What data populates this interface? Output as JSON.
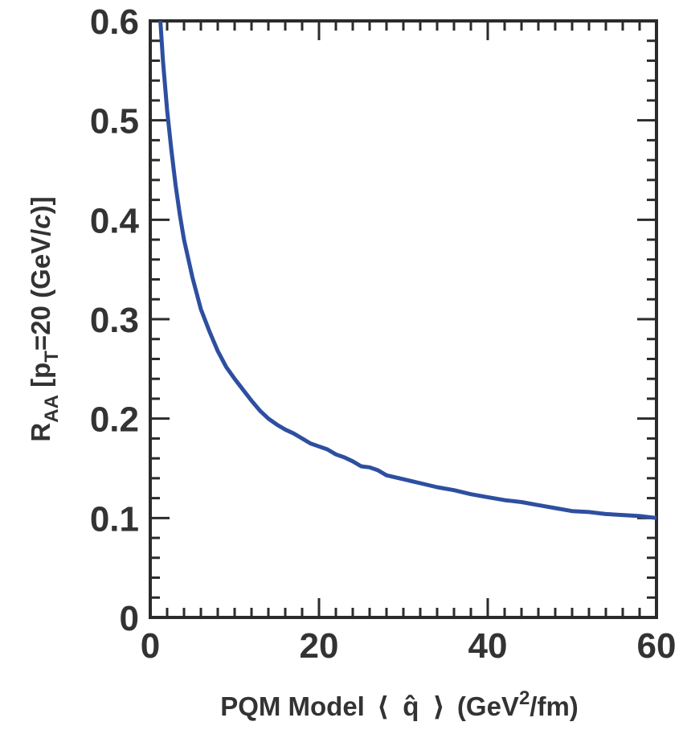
{
  "chart_data": {
    "type": "line",
    "title": "",
    "xlabel": {
      "prefix": "PQM Model",
      "langle": "⟨",
      "symbol": "q̂",
      "rangle": "⟩",
      "unit_pre": "(GeV",
      "unit_sup": "2",
      "unit_post": "/fm)"
    },
    "ylabel": {
      "main": "R",
      "sub": "AA",
      "mid1": " [p",
      "sub2": "T",
      "mid2": "=20 (GeV/",
      "italic": "c",
      "end": ")]"
    },
    "xlim": [
      0,
      60
    ],
    "ylim": [
      0,
      0.6
    ],
    "x_ticks": [
      0,
      20,
      40,
      60
    ],
    "x_tick_labels": [
      "0",
      "20",
      "40",
      "60"
    ],
    "y_ticks": [
      0,
      0.1,
      0.2,
      0.3,
      0.4,
      0.5,
      0.6
    ],
    "y_tick_labels": [
      "0",
      "0.1",
      "0.2",
      "0.3",
      "0.4",
      "0.5",
      "0.6"
    ],
    "grid": false,
    "series": [
      {
        "color": "#2e4fa0",
        "x": [
          1.2,
          1.5,
          2,
          2.5,
          3,
          3.5,
          4,
          5,
          6,
          7,
          8,
          9,
          10,
          11,
          12,
          13,
          14,
          15,
          16,
          17,
          18,
          19,
          20,
          21,
          22,
          23,
          24,
          25,
          26,
          27,
          28,
          30,
          32,
          34,
          36,
          38,
          40,
          42,
          44,
          46,
          48,
          50,
          52,
          54,
          56,
          58,
          60
        ],
        "y": [
          0.6,
          0.56,
          0.51,
          0.47,
          0.435,
          0.405,
          0.38,
          0.342,
          0.31,
          0.288,
          0.268,
          0.252,
          0.24,
          0.229,
          0.218,
          0.208,
          0.2,
          0.194,
          0.189,
          0.185,
          0.18,
          0.175,
          0.172,
          0.169,
          0.164,
          0.161,
          0.157,
          0.152,
          0.151,
          0.148,
          0.143,
          0.139,
          0.135,
          0.131,
          0.128,
          0.124,
          0.121,
          0.118,
          0.116,
          0.113,
          0.11,
          0.107,
          0.106,
          0.104,
          0.103,
          0.102,
          0.1
        ]
      }
    ]
  }
}
